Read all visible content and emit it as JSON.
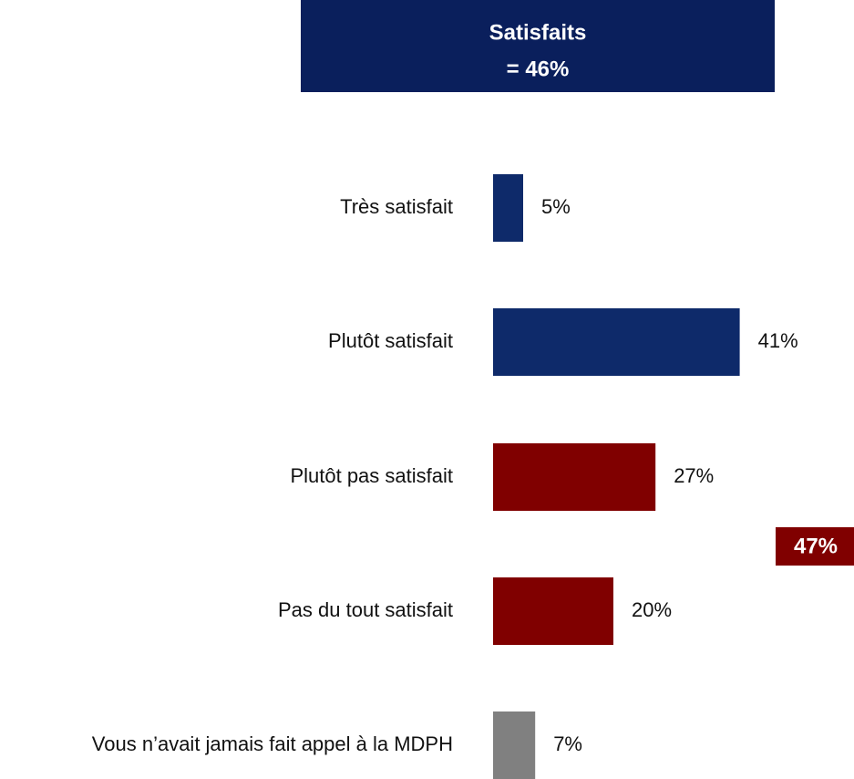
{
  "chart_data": {
    "type": "hbar",
    "categories": [
      "Très satisfait",
      "Plutôt satisfait",
      "Plutôt pas satisfait",
      "Pas du tout satisfait",
      "Vous n’avait jamais fait appel à la MDPH"
    ],
    "values": [
      5,
      41,
      27,
      20,
      7
    ],
    "value_labels": [
      "5%",
      "41%",
      "27%",
      "20%",
      "7%"
    ],
    "colors": [
      "#0e2a6a",
      "#0e2a6a",
      "#800000",
      "#800000",
      "#808080"
    ],
    "annotations": [
      {
        "lines": [
          "Satisfaits",
          "= 46%"
        ],
        "color": "#0a1f5c"
      },
      {
        "lines": [
          "47%"
        ],
        "color": "#800000"
      }
    ]
  }
}
